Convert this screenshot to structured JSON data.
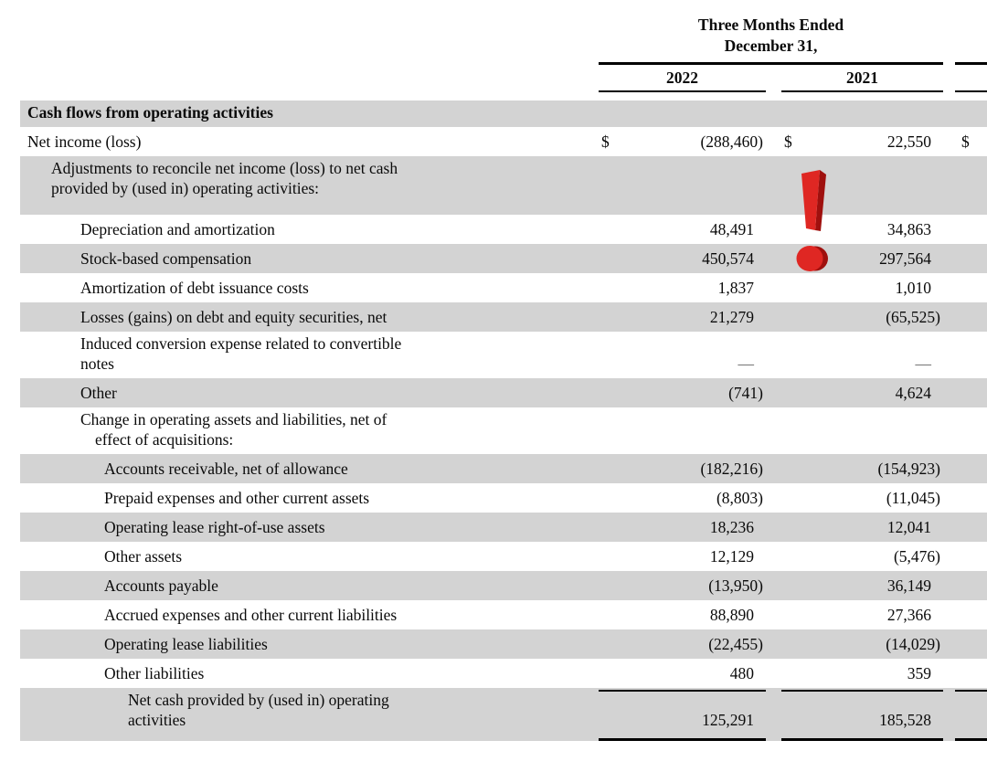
{
  "header": {
    "period_title_line1": "Three Months Ended",
    "period_title_line2": "December 31,",
    "years": [
      "2022",
      "2021"
    ]
  },
  "colors": {
    "row_shade": "#d3d3d3",
    "rule": "#000000",
    "icon_red": "#df2723",
    "icon_red_dark": "#9f100e"
  },
  "annotation": {
    "icon": "exclamation-mark-icon",
    "color_main": "#df2723",
    "color_dark": "#9f100e"
  },
  "table": {
    "rows": [
      {
        "label_lines": [
          "Cash flows from operating activities"
        ],
        "indent": 0,
        "bold": true,
        "shaded": true,
        "first": true
      },
      {
        "label_lines": [
          "Net income (loss)"
        ],
        "indent": 0,
        "dollar": "$",
        "values": [
          "(288,460)",
          "22,550"
        ],
        "third_dollar": "$"
      },
      {
        "label_lines": [
          "Adjustments to reconcile net income (loss) to net cash",
          "provided by (used in) operating activities:"
        ],
        "indent": 1,
        "shaded": true,
        "tall": true
      },
      {
        "label_lines": [
          "Depreciation and amortization"
        ],
        "indent": 2,
        "values": [
          "48,491",
          "34,863"
        ]
      },
      {
        "label_lines": [
          "Stock-based compensation"
        ],
        "indent": 2,
        "shaded": true,
        "values": [
          "450,574",
          "297,564"
        ]
      },
      {
        "label_lines": [
          "Amortization of debt issuance costs"
        ],
        "indent": 2,
        "values": [
          "1,837",
          "1,010"
        ]
      },
      {
        "label_lines": [
          "Losses (gains) on debt and equity securities, net"
        ],
        "indent": 2,
        "shaded": true,
        "values": [
          "21,279",
          "(65,525)"
        ]
      },
      {
        "label_lines": [
          "Induced conversion expense related to convertible",
          "notes"
        ],
        "indent": 2,
        "values": [
          "—",
          "—"
        ]
      },
      {
        "label_lines": [
          "Other"
        ],
        "indent": 2,
        "shaded": true,
        "values": [
          "(741)",
          "4,624"
        ]
      },
      {
        "label_lines": [
          "Change in operating assets and liabilities, net of",
          "effect of  acquisitions:"
        ],
        "indent": 2,
        "line2_extra_indent": true
      },
      {
        "label_lines": [
          "Accounts receivable, net of allowance"
        ],
        "indent": 3,
        "shaded": true,
        "values": [
          "(182,216)",
          "(154,923)"
        ]
      },
      {
        "label_lines": [
          "Prepaid expenses and other current assets"
        ],
        "indent": 3,
        "values": [
          "(8,803)",
          "(11,045)"
        ]
      },
      {
        "label_lines": [
          "Operating lease right-of-use assets"
        ],
        "indent": 3,
        "shaded": true,
        "values": [
          "18,236",
          "12,041"
        ]
      },
      {
        "label_lines": [
          "Other assets"
        ],
        "indent": 3,
        "values": [
          "12,129",
          "(5,476)"
        ]
      },
      {
        "label_lines": [
          "Accounts payable"
        ],
        "indent": 3,
        "shaded": true,
        "values": [
          "(13,950)",
          "36,149"
        ]
      },
      {
        "label_lines": [
          "Accrued expenses and other current liabilities"
        ],
        "indent": 3,
        "values": [
          "88,890",
          "27,366"
        ]
      },
      {
        "label_lines": [
          "Operating lease liabilities"
        ],
        "indent": 3,
        "shaded": true,
        "values": [
          "(22,455)",
          "(14,029)"
        ]
      },
      {
        "label_lines": [
          "Other liabilities"
        ],
        "indent": 3,
        "values": [
          "480",
          "359"
        ]
      },
      {
        "label_lines": [
          "Net cash provided by (used in) operating",
          "activities"
        ],
        "indent": 4,
        "shaded": true,
        "values": [
          "125,291",
          "185,528"
        ],
        "rule_above": true,
        "rule_below": true
      }
    ]
  }
}
